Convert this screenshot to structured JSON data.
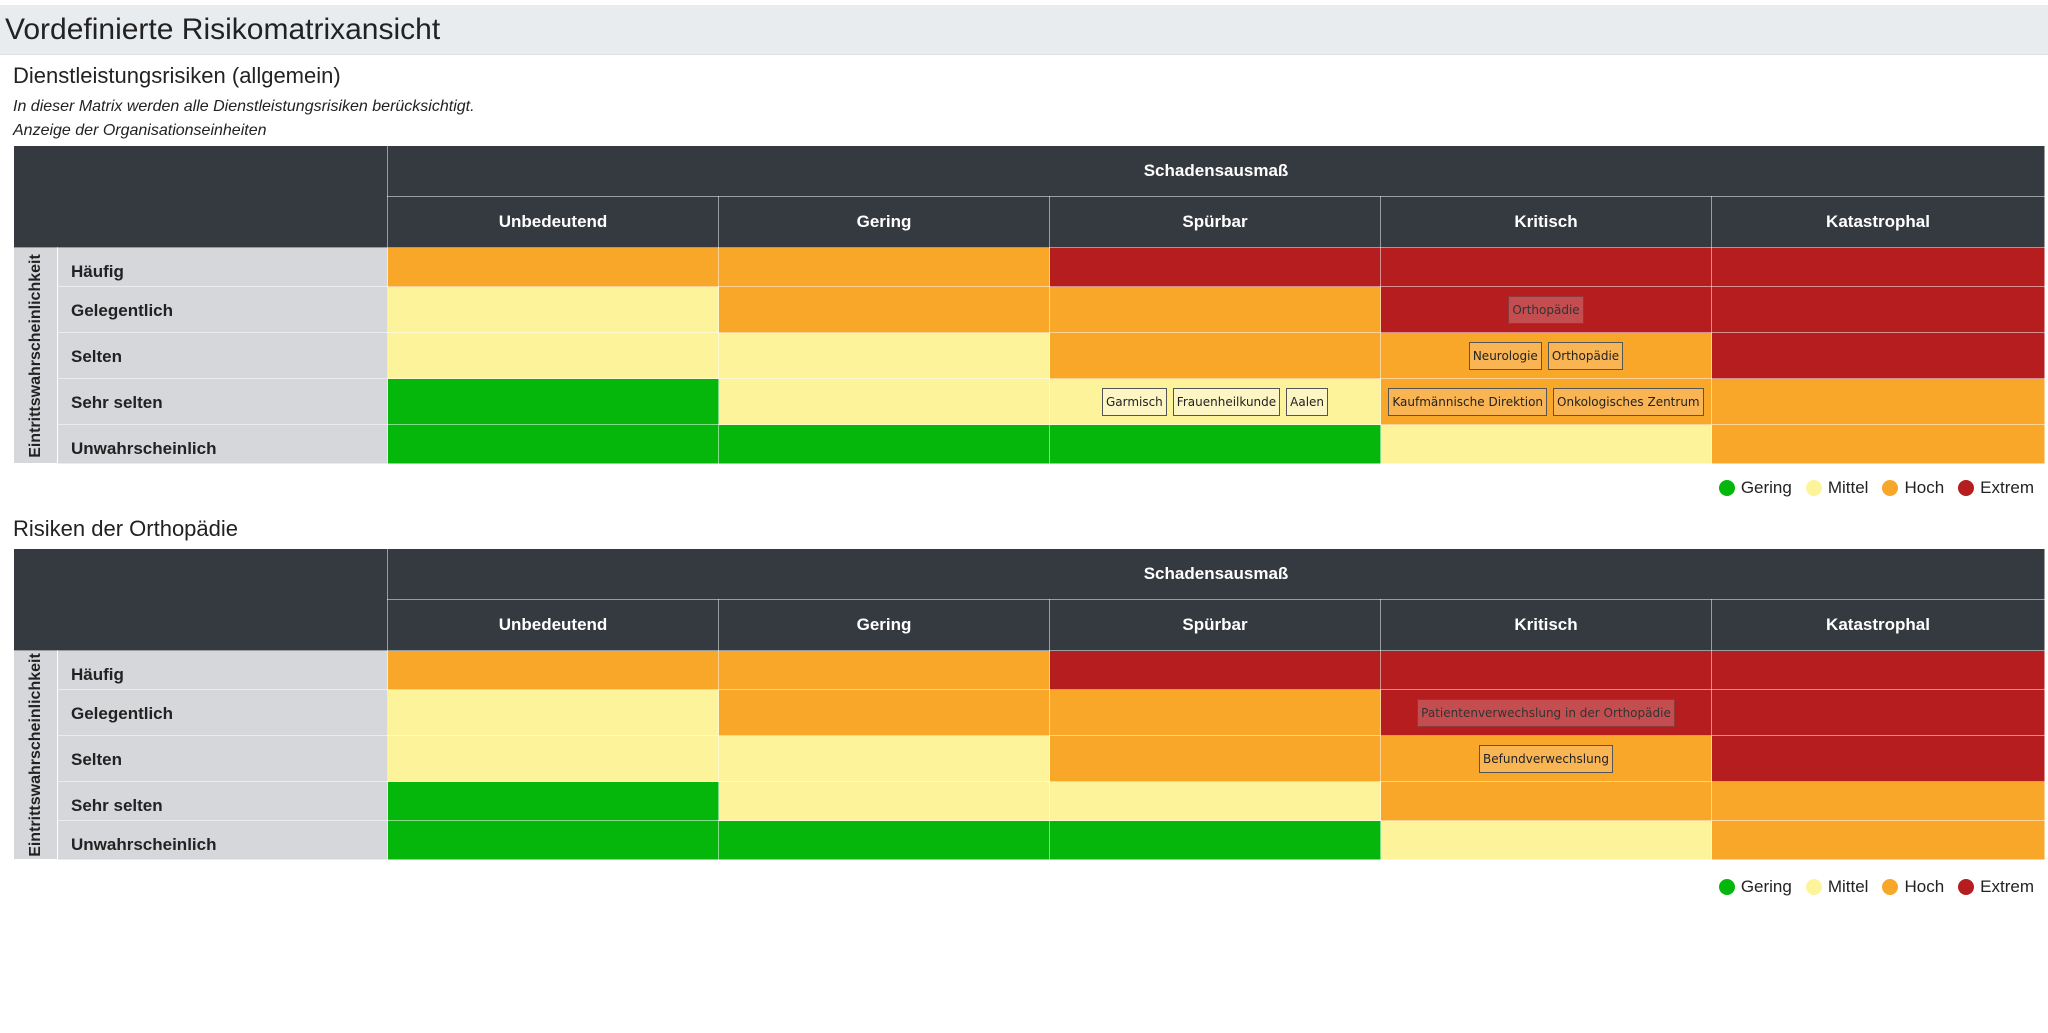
{
  "page": {
    "title": "Vordefinierte Risikomatrixansicht"
  },
  "colors": {
    "low": "#05b70a",
    "mid": "#fdf39b",
    "high": "#f8a728",
    "extreme": "#b51d1f",
    "header": "#343a40",
    "rowlabel": "#d5d7da"
  },
  "legend": [
    {
      "label": "Gering",
      "color": "#05b70a"
    },
    {
      "label": "Mittel",
      "color": "#fdf39b"
    },
    {
      "label": "Hoch",
      "color": "#f8a728"
    },
    {
      "label": "Extrem",
      "color": "#b51d1f"
    }
  ],
  "matrices": [
    {
      "title": "Dienstleistungsrisiken (allgemein)",
      "description": "In dieser Matrix werden alle Dienstleistungsrisiken berücksichtigt.",
      "subdescription": "Anzeige der Organisationseinheiten",
      "col_group": "Schadensausmaß",
      "row_group": "Eintrittswahrscheinlichkeit",
      "columns": [
        "Unbedeutend",
        "Gering",
        "Spürbar",
        "Kritisch",
        "Katastrophal"
      ],
      "rows": [
        {
          "label": "Häufig",
          "cells": [
            {
              "level": "high",
              "tags": []
            },
            {
              "level": "high",
              "tags": []
            },
            {
              "level": "ext",
              "tags": []
            },
            {
              "level": "ext",
              "tags": []
            },
            {
              "level": "ext",
              "tags": []
            }
          ]
        },
        {
          "label": "Gelegentlich",
          "cells": [
            {
              "level": "mid",
              "tags": []
            },
            {
              "level": "high",
              "tags": []
            },
            {
              "level": "high",
              "tags": []
            },
            {
              "level": "ext",
              "tags": [
                "Orthopädie"
              ]
            },
            {
              "level": "ext",
              "tags": []
            }
          ]
        },
        {
          "label": "Selten",
          "cells": [
            {
              "level": "mid",
              "tags": []
            },
            {
              "level": "mid",
              "tags": []
            },
            {
              "level": "high",
              "tags": []
            },
            {
              "level": "high",
              "tags": [
                "Neurologie",
                "Orthopädie"
              ]
            },
            {
              "level": "ext",
              "tags": []
            }
          ]
        },
        {
          "label": "Sehr selten",
          "cells": [
            {
              "level": "low",
              "tags": []
            },
            {
              "level": "mid",
              "tags": []
            },
            {
              "level": "mid",
              "tags": [
                "Garmisch",
                "Frauenheilkunde",
                "Aalen"
              ]
            },
            {
              "level": "high",
              "tags": [
                "Kaufmännische Direktion",
                "Onkologisches Zentrum"
              ]
            },
            {
              "level": "high",
              "tags": []
            }
          ]
        },
        {
          "label": "Unwahrscheinlich",
          "cells": [
            {
              "level": "low",
              "tags": []
            },
            {
              "level": "low",
              "tags": []
            },
            {
              "level": "low",
              "tags": []
            },
            {
              "level": "mid",
              "tags": []
            },
            {
              "level": "high",
              "tags": []
            }
          ]
        }
      ]
    },
    {
      "title": "Risiken der Orthopädie",
      "description": "",
      "subdescription": "",
      "col_group": "Schadensausmaß",
      "row_group": "Eintrittswahrscheinlichkeit",
      "columns": [
        "Unbedeutend",
        "Gering",
        "Spürbar",
        "Kritisch",
        "Katastrophal"
      ],
      "rows": [
        {
          "label": "Häufig",
          "cells": [
            {
              "level": "high",
              "tags": []
            },
            {
              "level": "high",
              "tags": []
            },
            {
              "level": "ext",
              "tags": []
            },
            {
              "level": "ext",
              "tags": []
            },
            {
              "level": "ext",
              "tags": []
            }
          ]
        },
        {
          "label": "Gelegentlich",
          "cells": [
            {
              "level": "mid",
              "tags": []
            },
            {
              "level": "high",
              "tags": []
            },
            {
              "level": "high",
              "tags": []
            },
            {
              "level": "ext",
              "tags": [
                "Patientenverwechslung in der Orthopädie"
              ]
            },
            {
              "level": "ext",
              "tags": []
            }
          ]
        },
        {
          "label": "Selten",
          "cells": [
            {
              "level": "mid",
              "tags": []
            },
            {
              "level": "mid",
              "tags": []
            },
            {
              "level": "high",
              "tags": []
            },
            {
              "level": "high",
              "tags": [
                "Befundverwechslung"
              ]
            },
            {
              "level": "ext",
              "tags": []
            }
          ]
        },
        {
          "label": "Sehr selten",
          "cells": [
            {
              "level": "low",
              "tags": []
            },
            {
              "level": "mid",
              "tags": []
            },
            {
              "level": "mid",
              "tags": []
            },
            {
              "level": "high",
              "tags": []
            },
            {
              "level": "high",
              "tags": []
            }
          ]
        },
        {
          "label": "Unwahrscheinlich",
          "cells": [
            {
              "level": "low",
              "tags": []
            },
            {
              "level": "low",
              "tags": []
            },
            {
              "level": "low",
              "tags": []
            },
            {
              "level": "mid",
              "tags": []
            },
            {
              "level": "high",
              "tags": []
            }
          ]
        }
      ]
    }
  ]
}
